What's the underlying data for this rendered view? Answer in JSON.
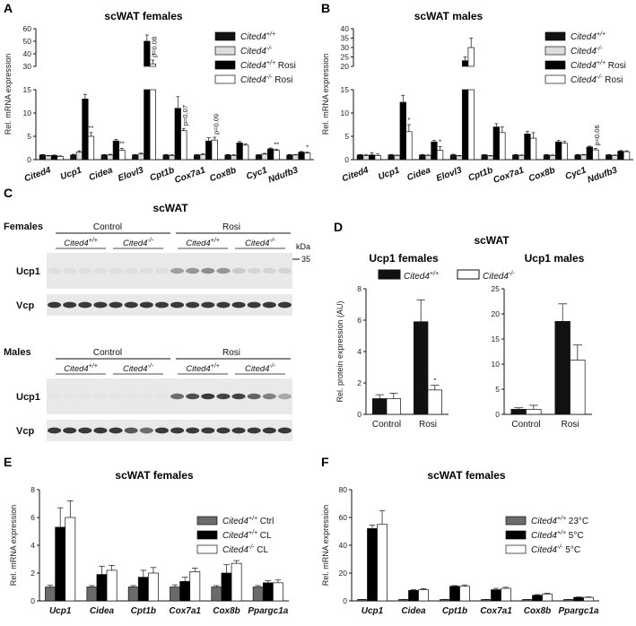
{
  "colors": {
    "wt": "#111111",
    "ko_fill": "#dddddd",
    "rosi_wt": "#000000",
    "rosi_ko": "#ffffff",
    "ctrl_grey": "#6b6b6b",
    "blot_bg": "#e9e9e9",
    "band": "#1a1a1a"
  },
  "panel_letters": {
    "A": "A",
    "B": "B",
    "C": "C",
    "D": "D",
    "E": "E",
    "F": "F"
  },
  "chart_data": [
    {
      "id": "A",
      "type": "bar",
      "title": "scWAT females",
      "ylabel": "Rel. mRNA expression",
      "broken_axis": true,
      "ylim_lower": [
        0,
        15
      ],
      "ylim_upper": [
        30,
        60
      ],
      "yticks_lower": [
        "0",
        "5",
        "10",
        "15"
      ],
      "yticks_upper": [
        "30",
        "40",
        "50",
        "60"
      ],
      "categories": [
        "Cited4",
        "Ucp1",
        "Cidea",
        "Elovl3",
        "Cpt1b",
        "Cox7a1",
        "Cox8b",
        "Cyc1",
        "Ndufb3"
      ],
      "legend": [
        "Cited4",
        "Cited4",
        "Cited4",
        "Cited4"
      ],
      "legend_sup": [
        "+/+",
        "-/-",
        "+/+",
        "-/-"
      ],
      "legend_suffix": [
        "",
        "",
        " Rosi",
        " Rosi"
      ],
      "series": [
        {
          "values": [
            1.0,
            1.0,
            1.0,
            1.0,
            1.0,
            1.0,
            1.0,
            1.0,
            1.0
          ],
          "errors": [
            0.1,
            0.15,
            0.1,
            0.1,
            0.1,
            0.1,
            0.1,
            0.1,
            0.1
          ]
        },
        {
          "values": [
            0.8,
            1.6,
            1.0,
            1.2,
            0.9,
            1.1,
            0.9,
            1.2,
            1.0
          ],
          "errors": [
            0.1,
            0.3,
            0.15,
            0.2,
            0.15,
            0.15,
            0.15,
            0.15,
            0.1
          ]
        },
        {
          "values": [
            0.9,
            13.0,
            4.0,
            50.0,
            11.0,
            4.0,
            3.6,
            2.3,
            1.6
          ],
          "errors": [
            0.1,
            1.0,
            0.3,
            5.0,
            2.5,
            0.7,
            0.3,
            0.2,
            0.15
          ]
        },
        {
          "values": [
            0.7,
            5.0,
            2.0,
            32.0,
            6.2,
            4.2,
            3.1,
            2.0,
            1.4
          ],
          "errors": [
            0.1,
            0.8,
            0.4,
            3.0,
            0.5,
            0.6,
            0.3,
            0.2,
            0.2
          ]
        }
      ],
      "annotations": [
        {
          "cat": 1,
          "text": "**"
        },
        {
          "cat": 2,
          "text": "**"
        },
        {
          "cat": 3,
          "text": "*"
        },
        {
          "cat": 3,
          "text": "p=0.08",
          "rotate": true
        },
        {
          "cat": 4,
          "text": "p=0.07",
          "rotate": true
        },
        {
          "cat": 5,
          "text": "p=0.09",
          "rotate": true
        },
        {
          "cat": 7,
          "text": "**"
        },
        {
          "cat": 8,
          "text": "*"
        }
      ]
    },
    {
      "id": "B",
      "type": "bar",
      "title": "scWAT males",
      "ylabel": "Rel. mRNA expression",
      "broken_axis": true,
      "ylim_lower": [
        0,
        15
      ],
      "ylim_upper": [
        20,
        40
      ],
      "yticks_lower": [
        "0",
        "5",
        "10",
        "15"
      ],
      "yticks_upper": [
        "20",
        "25",
        "30",
        "35",
        "40"
      ],
      "categories": [
        "Cited4",
        "Ucp1",
        "Cidea",
        "Elovl3",
        "Cpt1b",
        "Cox7a1",
        "Cox8b",
        "Cyc1",
        "Ndufb3"
      ],
      "legend": [
        "Cited4",
        "Cited4",
        "Cited4",
        "Cited4"
      ],
      "legend_sup": [
        "+/+",
        "-/-",
        "+/+",
        "-/-"
      ],
      "legend_suffix": [
        "",
        "",
        " Rosi",
        " Rosi"
      ],
      "series": [
        {
          "values": [
            1.0,
            1.0,
            1.0,
            1.0,
            1.0,
            1.0,
            1.0,
            1.0,
            1.0
          ],
          "errors": [
            0.1,
            0.1,
            0.1,
            0.15,
            0.1,
            0.1,
            0.1,
            0.1,
            0.1
          ]
        },
        {
          "values": [
            0.9,
            0.9,
            0.9,
            0.8,
            0.8,
            0.9,
            0.9,
            1.0,
            0.9
          ],
          "errors": [
            0.15,
            0.1,
            0.1,
            0.1,
            0.1,
            0.1,
            0.1,
            0.1,
            0.1
          ]
        },
        {
          "values": [
            1.0,
            12.3,
            3.8,
            23.0,
            7.0,
            5.5,
            3.8,
            2.7,
            1.8
          ],
          "errors": [
            0.5,
            1.5,
            0.3,
            2.0,
            0.7,
            0.6,
            0.3,
            0.2,
            0.15
          ]
        },
        {
          "values": [
            0.9,
            6.0,
            2.0,
            30.0,
            5.8,
            4.6,
            3.5,
            2.1,
            1.7
          ],
          "errors": [
            0.3,
            1.5,
            0.8,
            5.0,
            1.2,
            1.2,
            0.4,
            0.3,
            0.2
          ]
        }
      ],
      "annotations": [
        {
          "cat": 1,
          "text": "*"
        },
        {
          "cat": 2,
          "text": "*"
        },
        {
          "cat": 7,
          "text": "p=0.06",
          "rotate": true
        }
      ]
    },
    {
      "id": "D1",
      "type": "bar",
      "title": "Ucp1 females",
      "ylabel": "Rel. protein expression (AU)",
      "ylim": [
        0,
        8
      ],
      "yticks": [
        "0",
        "2",
        "4",
        "6",
        "8"
      ],
      "categories": [
        "Control",
        "Rosi"
      ],
      "series": [
        {
          "values": [
            1.0,
            5.9
          ],
          "errors": [
            0.25,
            1.4
          ]
        },
        {
          "values": [
            1.0,
            1.55
          ],
          "errors": [
            0.35,
            0.3
          ]
        }
      ],
      "annotations": [
        {
          "cat": 1,
          "text": "*"
        }
      ]
    },
    {
      "id": "D2",
      "type": "bar",
      "title": "Ucp1 males",
      "ylim": [
        0,
        25
      ],
      "yticks": [
        "0",
        "5",
        "10",
        "15",
        "20",
        "25"
      ],
      "categories": [
        "Control",
        "Rosi"
      ],
      "series": [
        {
          "values": [
            1.0,
            18.5
          ],
          "errors": [
            0.3,
            3.5
          ]
        },
        {
          "values": [
            1.0,
            10.8
          ],
          "errors": [
            0.8,
            3.0
          ]
        }
      ]
    },
    {
      "id": "E",
      "type": "bar",
      "title": "scWAT females",
      "ylabel": "Rel. mRNA expression",
      "ylim": [
        0,
        8
      ],
      "yticks": [
        "0",
        "2",
        "4",
        "6",
        "8"
      ],
      "categories": [
        "Ucp1",
        "Cidea",
        "Cpt1b",
        "Cox7a1",
        "Cox8b",
        "Ppargc1a"
      ],
      "legend": [
        "Cited4",
        "Cited4",
        "Cited4"
      ],
      "legend_sup": [
        "+/+",
        "+/+",
        "-/-"
      ],
      "legend_suffix": [
        " Ctrl",
        " CL",
        " CL"
      ],
      "series": [
        {
          "values": [
            1.0,
            1.0,
            1.0,
            1.0,
            1.0,
            1.0
          ],
          "errors": [
            0.12,
            0.1,
            0.1,
            0.15,
            0.1,
            0.1
          ]
        },
        {
          "values": [
            5.3,
            1.9,
            1.7,
            1.4,
            2.0,
            1.3
          ],
          "errors": [
            1.4,
            0.6,
            0.5,
            0.3,
            0.6,
            0.15
          ]
        },
        {
          "values": [
            6.0,
            2.2,
            2.0,
            2.1,
            2.7,
            1.3
          ],
          "errors": [
            1.2,
            0.35,
            0.4,
            0.25,
            0.2,
            0.2
          ]
        }
      ]
    },
    {
      "id": "F",
      "type": "bar",
      "title": "scWAT females",
      "ylabel": "Rel. mRNA expression",
      "ylim": [
        0,
        80
      ],
      "yticks": [
        "0",
        "20",
        "40",
        "60",
        "80"
      ],
      "categories": [
        "Ucp1",
        "Cidea",
        "Cpt1b",
        "Cox7a1",
        "Cox8b",
        "Ppargc1a"
      ],
      "legend": [
        "Cited4",
        "Cited4",
        "Cited4"
      ],
      "legend_sup": [
        "+/+",
        "+/+",
        "-/-"
      ],
      "legend_suffix": [
        " 23°C",
        " 5°C",
        " 5°C"
      ],
      "series": [
        {
          "values": [
            1.0,
            1.0,
            1.0,
            1.0,
            1.0,
            1.0
          ],
          "errors": [
            0.1,
            0.1,
            0.1,
            0.1,
            0.1,
            0.1
          ]
        },
        {
          "values": [
            52.0,
            7.5,
            10.5,
            8.0,
            4.0,
            2.5
          ],
          "errors": [
            2.5,
            0.5,
            0.5,
            1.0,
            0.5,
            0.3
          ]
        },
        {
          "values": [
            55.0,
            8.0,
            10.5,
            9.0,
            5.0,
            2.5
          ],
          "errors": [
            10.0,
            0.8,
            1.0,
            0.8,
            0.5,
            0.3
          ]
        }
      ]
    }
  ],
  "panel_d": {
    "title": "scWAT",
    "legend": [
      {
        "label": "Cited4",
        "sup": "+/+"
      },
      {
        "label": "Cited4",
        "sup": "-/-"
      }
    ]
  },
  "panel_c": {
    "title": "scWAT",
    "kda_label": "kDa",
    "kda_value": "35",
    "blocks": [
      {
        "sex": "Females",
        "groups": [
          "Control",
          "Rosi"
        ],
        "genotypes": [
          {
            "label": "Cited4",
            "sup": "+/+"
          },
          {
            "label": "Cited4",
            "sup": "-/-"
          },
          {
            "label": "Cited4",
            "sup": "+/+"
          },
          {
            "label": "Cited4",
            "sup": "-/-"
          }
        ],
        "rows": [
          {
            "label": "Ucp1",
            "intensity": [
              0.05,
              0.05,
              0.05,
              0.05,
              0.05,
              0.05,
              0.05,
              0.05,
              0.35,
              0.4,
              0.45,
              0.4,
              0.15,
              0.1,
              0.1,
              0.1
            ]
          },
          {
            "label": "Vcp",
            "intensity": [
              0.85,
              0.85,
              0.85,
              0.85,
              0.85,
              0.85,
              0.85,
              0.85,
              0.85,
              0.85,
              0.85,
              0.85,
              0.85,
              0.85,
              0.85,
              0.85
            ]
          }
        ]
      },
      {
        "sex": "Males",
        "groups": [
          "Control",
          "Rosi"
        ],
        "genotypes": [
          {
            "label": "Cited4",
            "sup": "+/+"
          },
          {
            "label": "Cited4",
            "sup": "-/-"
          },
          {
            "label": "Cited4",
            "sup": "+/+"
          },
          {
            "label": "Cited4",
            "sup": "-/-"
          }
        ],
        "rows": [
          {
            "label": "Ucp1",
            "intensity": [
              0.02,
              0.02,
              0.02,
              0.02,
              0.02,
              0.02,
              0.02,
              0.02,
              0.6,
              0.75,
              0.85,
              0.8,
              0.8,
              0.65,
              0.5,
              0.3
            ]
          },
          {
            "label": "Vcp",
            "intensity": [
              0.85,
              0.85,
              0.85,
              0.85,
              0.85,
              0.7,
              0.6,
              0.85,
              0.85,
              0.85,
              0.85,
              0.85,
              0.85,
              0.85,
              0.85,
              0.85
            ]
          }
        ]
      }
    ]
  }
}
